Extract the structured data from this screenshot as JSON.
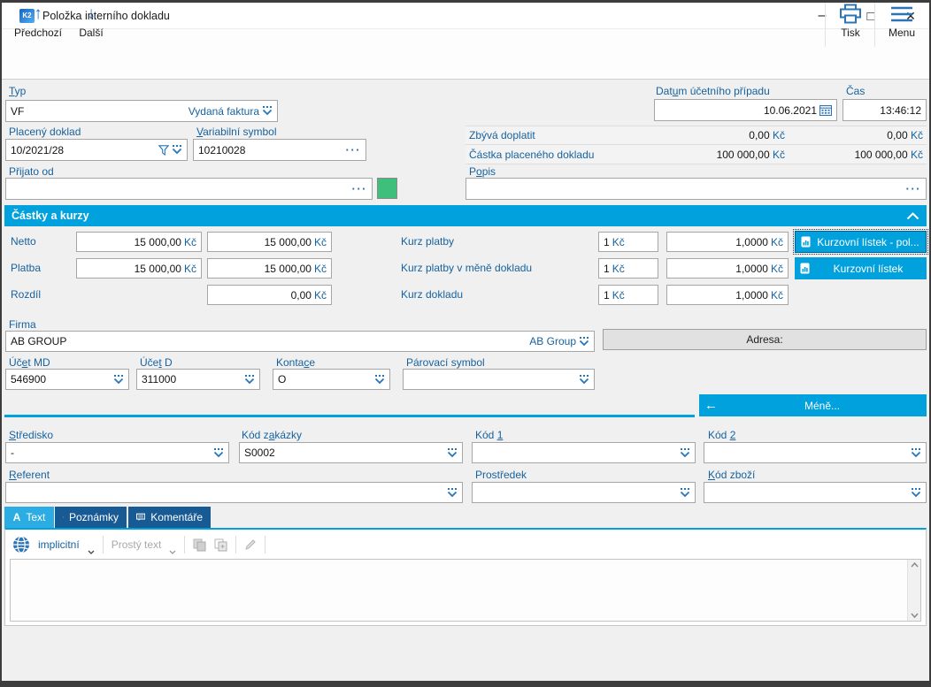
{
  "window": {
    "title": "Položka interního dokladu",
    "icon_text": "K2"
  },
  "icons": {
    "minimize": "–",
    "maximize": "□",
    "close": "✕",
    "arrow_up": "↑",
    "arrow_down": "↓",
    "arrow_left": "←",
    "ellipsis": "···",
    "letter_a": "A"
  },
  "toolbar": {
    "previous": "Předchozí",
    "next": "Další",
    "print": "Tisk",
    "menu": "Menu"
  },
  "currency": "Kč",
  "header_fields": {
    "typ_label": "Typ",
    "typ_value": "VF",
    "typ_display": "Vydaná faktura",
    "datum_label": "Datum účetního případu",
    "datum_value": "10.06.2021",
    "cas_label": "Čas",
    "cas_value": "13:46:12",
    "placeny_label": "Placený doklad",
    "placeny_value": "10/2021/28",
    "varsym_label": "Variabilní symbol",
    "varsym_value": "10210028",
    "zbyva_label": "Zbývá doplatit",
    "zbyva_value1": "0,00",
    "zbyva_value2": "0,00",
    "castka_label": "Částka placeného dokladu",
    "castka_value1": "100 000,00",
    "castka_value2": "100 000,00",
    "prijato_label": "Přijato od",
    "prijato_value": "",
    "popis_label": "Popis",
    "popis_value": ""
  },
  "castky_section": {
    "title": "Částky a kurzy",
    "netto_label": "Netto",
    "netto1": "15 000,00",
    "netto2": "15 000,00",
    "platba_label": "Platba",
    "platba1": "15 000,00",
    "platba2": "15 000,00",
    "rozdil_label": "Rozdíl",
    "rozdil2": "0,00",
    "kurz_platby_label": "Kurz platby",
    "kurz_mena_label": "Kurz platby v měně dokladu",
    "kurz_dokladu_label": "Kurz dokladu",
    "kurz_unit": "1",
    "kurz_value": "1,0000",
    "btn_kurzovni_pol": "Kurzovní lístek - pol...",
    "btn_kurzovni": "Kurzovní lístek"
  },
  "firma": {
    "label": "Firma",
    "value": "AB GROUP",
    "display": "AB Group",
    "adresa_label": "Adresa:"
  },
  "accounts": {
    "ucet_md_label": "Účet MD",
    "ucet_md": "546900",
    "ucet_d_label": "Účet D",
    "ucet_d": "311000",
    "kontace_label": "Kontace",
    "kontace": "O",
    "parovaci_label": "Párovací symbol",
    "parovaci": ""
  },
  "mene_button": "Méně...",
  "codes": {
    "stredisko_label": "Středisko",
    "stredisko": "-",
    "kod_zakazky_label": "Kód zakázky",
    "kod_zakazky": "S0002",
    "kod1_label": "Kód 1",
    "kod1": "",
    "kod2_label": "Kód 2",
    "kod2": "",
    "referent_label": "Referent",
    "referent": "",
    "prostredek_label": "Prostředek",
    "prostredek": "",
    "kod_zbozi_label": "Kód zboží",
    "kod_zbozi": ""
  },
  "tabs": {
    "text": "Text",
    "poznamky": "Poznámky",
    "komentare": "Komentáře"
  },
  "editor": {
    "language": "implicitní",
    "format": "Prostý text"
  }
}
